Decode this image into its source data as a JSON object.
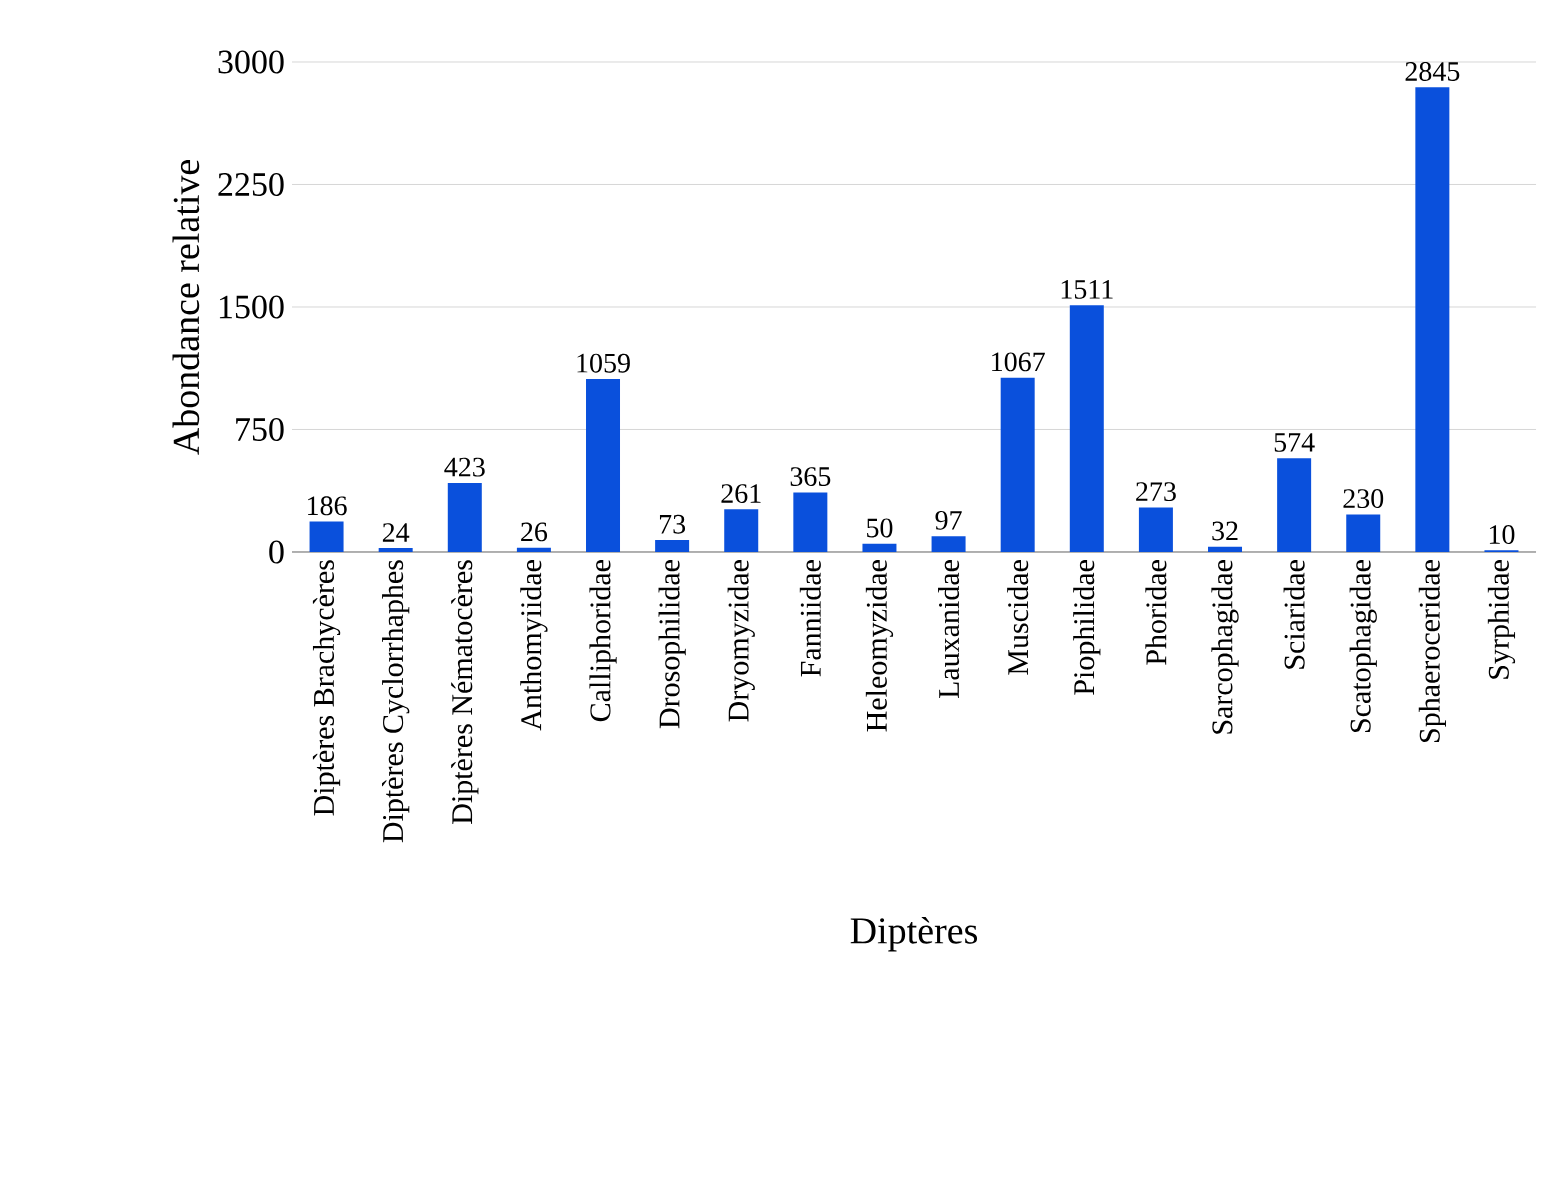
{
  "chart_data": {
    "type": "bar",
    "xlabel": "Diptères",
    "ylabel": "Abondance relative",
    "categories": [
      "Diptères Brachycères",
      "Diptères Cyclorrhaphes",
      "Diptères Nématocères",
      "Anthomyiidae",
      "Calliphoridae",
      "Drosophilidae",
      "Dryomyzidae",
      "Fanniidae",
      "Heleomyzidae",
      "Lauxanidae",
      "Muscidae",
      "Piophilidae",
      "Phoridae",
      "Sarcophagidae",
      "Sciaridae",
      "Scatophagidae",
      "Sphaeroceridae",
      "Syrphidae"
    ],
    "values": [
      186,
      24,
      423,
      26,
      1059,
      73,
      261,
      365,
      50,
      97,
      1067,
      1511,
      273,
      32,
      574,
      230,
      2845,
      10
    ],
    "color": "#0a50dc",
    "ylim": [
      0,
      3000
    ],
    "yticks": [
      0,
      750,
      1500,
      2250,
      3000
    ],
    "grid": "y",
    "data_labels": true
  }
}
